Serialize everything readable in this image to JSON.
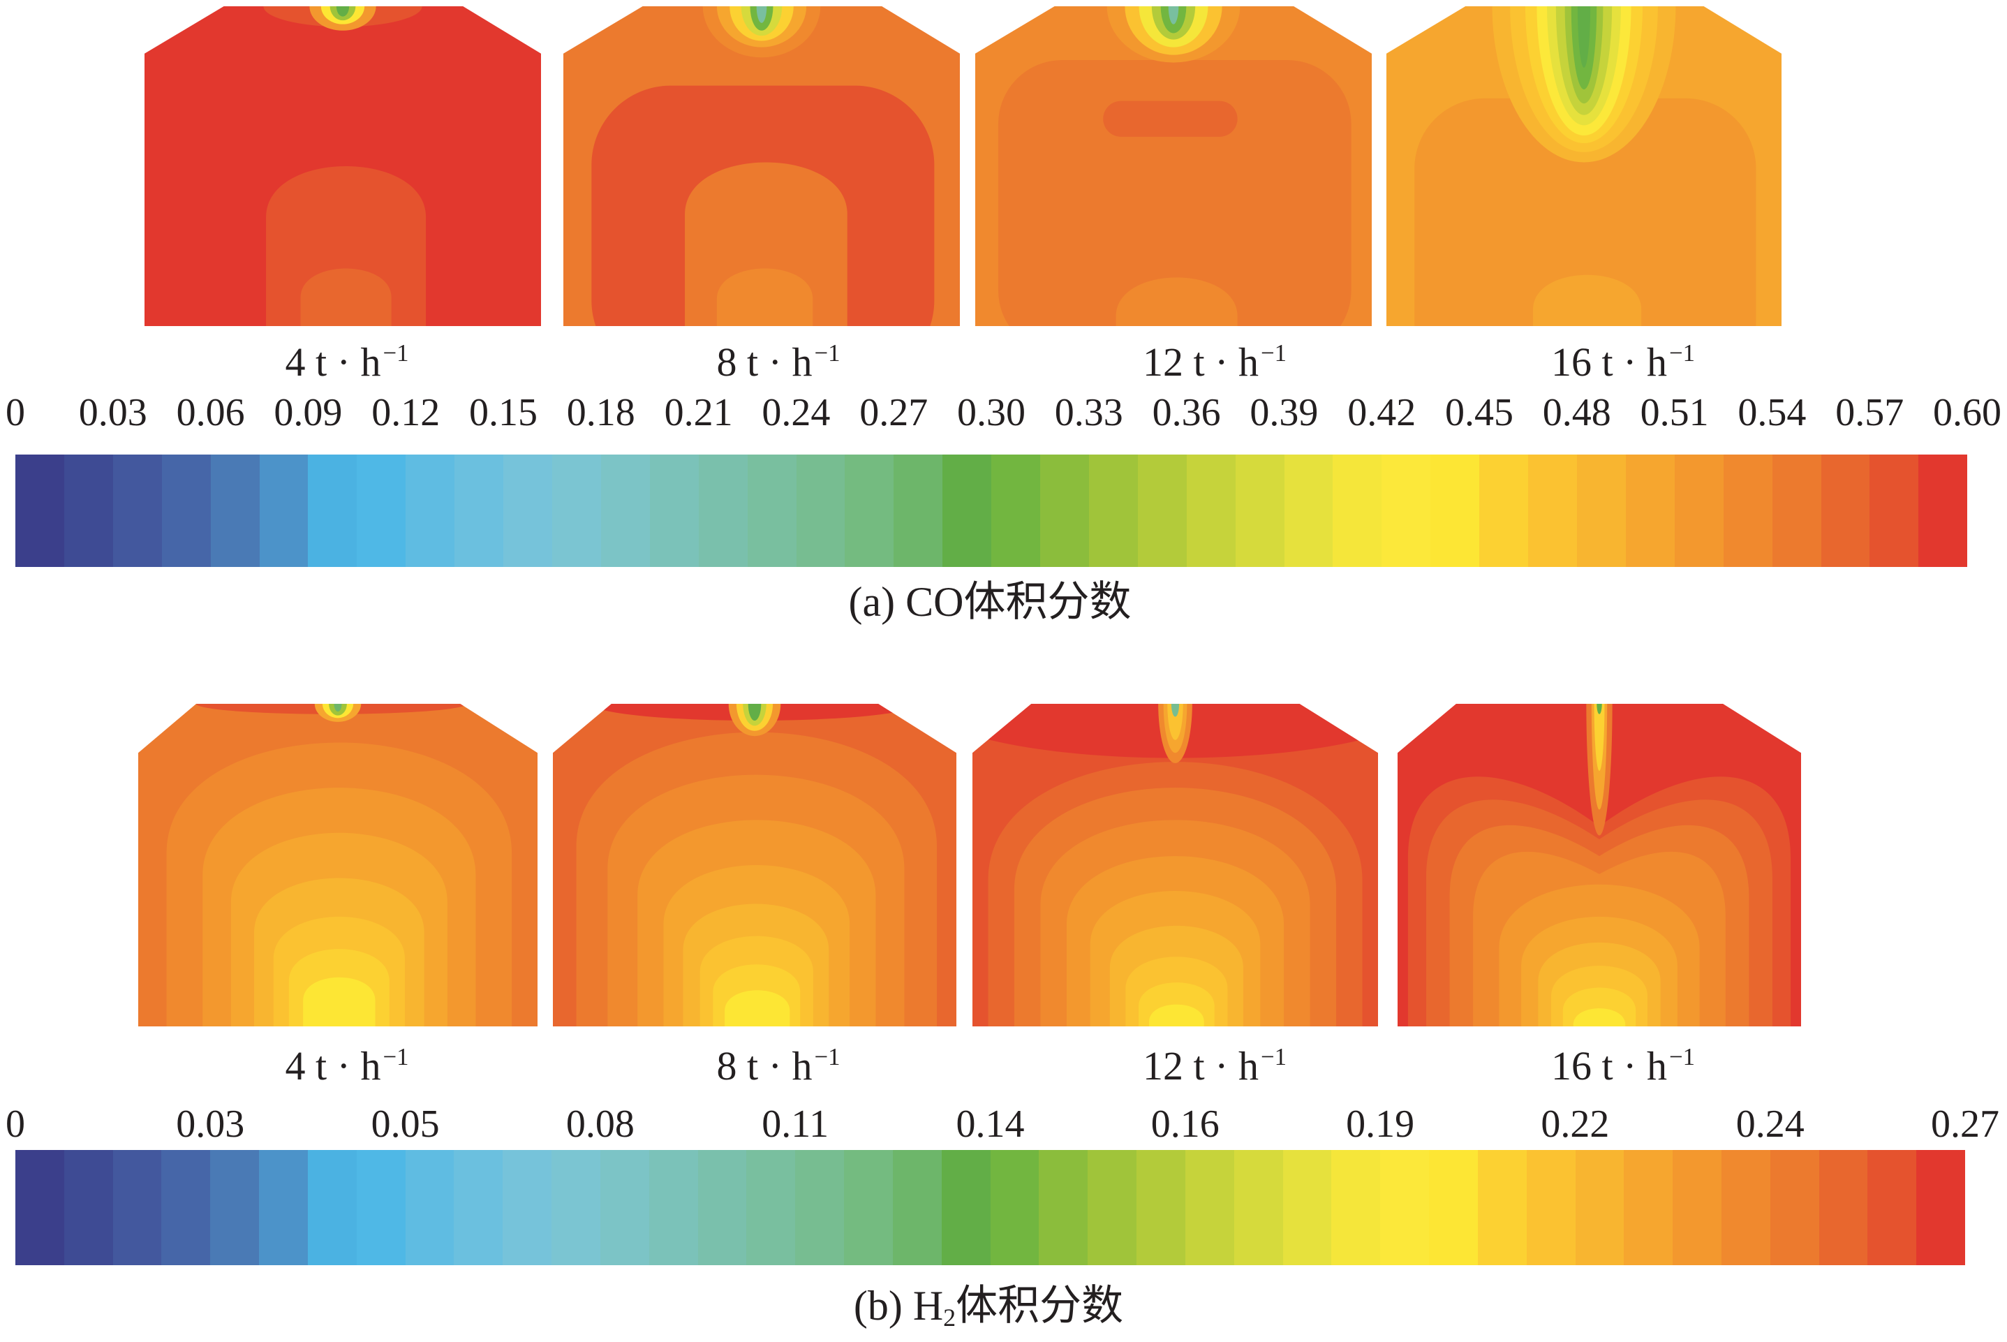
{
  "colormap": [
    "#3b3f8b",
    "#3e4b94",
    "#43589e",
    "#4666a8",
    "#4a7ab5",
    "#4c93c9",
    "#4bb2e2",
    "#4fb8e6",
    "#5fbce2",
    "#6bc0df",
    "#76c3da",
    "#7bc5d2",
    "#7cc4c6",
    "#7bc2b9",
    "#7ac0ac",
    "#79bf9f",
    "#77bd91",
    "#74bb80",
    "#6db66a",
    "#62ae47",
    "#72b640",
    "#8bbd3c",
    "#a0c43a",
    "#b3cb3a",
    "#c6d33b",
    "#d6da3c",
    "#e6e13d",
    "#f5e63a",
    "#fce83a",
    "#fde634",
    "#fcd132",
    "#fbc231",
    "#f8b530",
    "#f6a62f",
    "#f3982e",
    "#f0892e",
    "#ec7a2e",
    "#e8672e",
    "#e5532e",
    "#e2382e"
  ],
  "chart_data": [
    {
      "type": "heatmap",
      "caption": {
        "prefix": "(a) CO",
        "suffix": "体积分数"
      },
      "panels": [
        {
          "rate": "4 t · h",
          "sup": "−1"
        },
        {
          "rate": "8 t · h",
          "sup": "−1"
        },
        {
          "rate": "12 t · h",
          "sup": "−1"
        },
        {
          "rate": "16 t · h",
          "sup": "−1"
        }
      ],
      "colorbar": {
        "ticks": [
          "0",
          "0.03",
          "0.06",
          "0.09",
          "0.12",
          "0.15",
          "0.18",
          "0.21",
          "0.24",
          "0.27",
          "0.30",
          "0.33",
          "0.36",
          "0.39",
          "0.42",
          "0.45",
          "0.48",
          "0.51",
          "0.54",
          "0.57",
          "0.60"
        ],
        "range": [
          0,
          0.6
        ],
        "levels": 40
      }
    },
    {
      "type": "heatmap",
      "caption": {
        "prefix": "(b) H",
        "sub": "2",
        "suffix": "体积分数"
      },
      "panels": [
        {
          "rate": "4 t · h",
          "sup": "−1"
        },
        {
          "rate": "8 t · h",
          "sup": "−1"
        },
        {
          "rate": "12 t · h",
          "sup": "−1"
        },
        {
          "rate": "16 t · h",
          "sup": "−1"
        }
      ],
      "colorbar": {
        "ticks": [
          "0",
          "0.03",
          "0.05",
          "0.08",
          "0.11",
          "0.14",
          "0.16",
          "0.19",
          "0.22",
          "0.24",
          "0.27"
        ],
        "range": [
          0,
          0.27
        ],
        "levels": 40
      }
    }
  ]
}
